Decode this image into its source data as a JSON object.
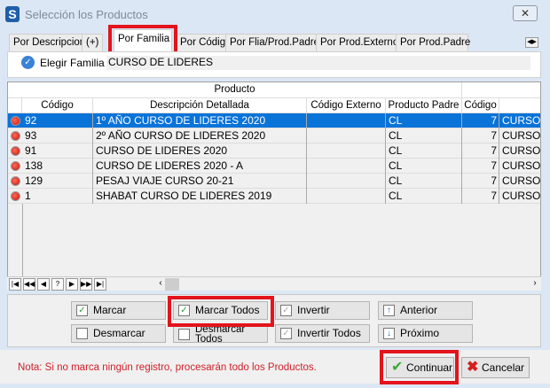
{
  "window": {
    "title": "Selección los Productos",
    "close_label": "✕"
  },
  "tabs": [
    {
      "label": "Por Descripcion"
    },
    {
      "label": "(+)"
    },
    {
      "label": "Por Familia",
      "active": true
    },
    {
      "label": "Por Código"
    },
    {
      "label": "Por Flia/Prod.Padre"
    },
    {
      "label": "Por Prod.Externo"
    },
    {
      "label": "Por Prod.Padre"
    }
  ],
  "filter": {
    "label": "Elegir Familia",
    "value": "CURSO DE LIDERES"
  },
  "grid": {
    "group_header": "Producto",
    "columns": [
      "Código",
      "Descripción Detallada",
      "Código Externo",
      "Producto Padre",
      "Código",
      ""
    ],
    "rows": [
      {
        "codigo": "92",
        "descripcion": "1º AÑO CURSO DE LIDERES 2020",
        "externo": "",
        "padre": "CL",
        "codigo2": "7",
        "extra": "CURSO D",
        "selected": true
      },
      {
        "codigo": "93",
        "descripcion": "2º AÑO CURSO DE LIDERES 2020",
        "externo": "",
        "padre": "CL",
        "codigo2": "7",
        "extra": "CURSO D"
      },
      {
        "codigo": "91",
        "descripcion": "CURSO DE LIDERES 2020",
        "externo": "",
        "padre": "CL",
        "codigo2": "7",
        "extra": "CURSO D"
      },
      {
        "codigo": "138",
        "descripcion": "CURSO DE LIDERES 2020 - A",
        "externo": "",
        "padre": "CL",
        "codigo2": "7",
        "extra": "CURSO D"
      },
      {
        "codigo": "129",
        "descripcion": "PESAJ VIAJE CURSO 20-21",
        "externo": "",
        "padre": "CL",
        "codigo2": "7",
        "extra": "CURSO D"
      },
      {
        "codigo": "1",
        "descripcion": "SHABAT CURSO DE LIDERES 2019",
        "externo": "",
        "padre": "CL",
        "codigo2": "7",
        "extra": "CURSO D"
      }
    ],
    "nav": [
      "|◀",
      "◀◀",
      "◀",
      "?",
      "▶",
      "▶▶",
      "▶|"
    ]
  },
  "buttons": {
    "marcar": "Marcar",
    "marcar_todos": "Marcar Todos",
    "invertir": "Invertir",
    "anterior": "Anterior",
    "desmarcar": "Desmarcar",
    "desmarcar_todos": "Desmarcar Todos",
    "invertir_todos": "Invertir Todos",
    "proximo": "Próximo"
  },
  "note": "Nota: Si no marca ningún registro, procesarán todo los Productos.",
  "actions": {
    "continuar": "Continuar",
    "cancelar": "Cancelar"
  },
  "colors": {
    "selected_row": "#0a73d8",
    "highlight": "#e3141c",
    "note": "#d0202a"
  }
}
